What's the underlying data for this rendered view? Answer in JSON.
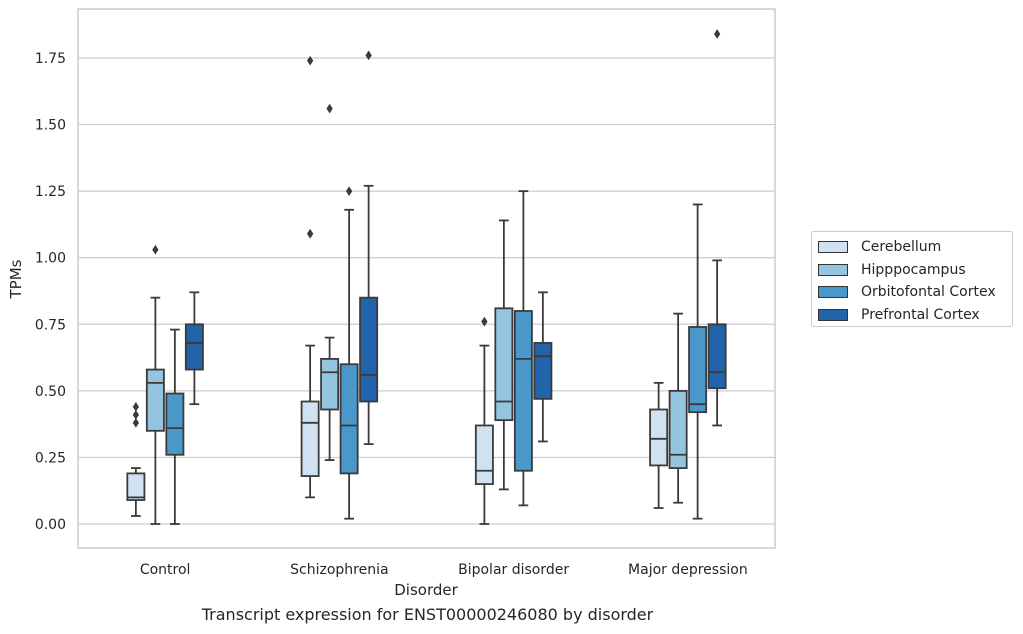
{
  "chart_data": {
    "type": "box",
    "title": "",
    "caption": "Transcript expression for ENST00000246080 by disorder",
    "xlabel": "Disorder",
    "ylabel": "TPMs",
    "categories": [
      "Control",
      "Schizophrenia",
      "Bipolar disorder",
      "Major depression"
    ],
    "ylim": [
      -0.09,
      1.94
    ],
    "yticks": [
      0.0,
      0.25,
      0.5,
      0.75,
      1.0,
      1.25,
      1.5,
      1.75
    ],
    "ytick_labels": [
      "0.00",
      "0.25",
      "0.50",
      "0.75",
      "1.00",
      "1.25",
      "1.50",
      "1.75"
    ],
    "grid": "horizontal",
    "legend_position": "right",
    "series": [
      {
        "name": "Cerebellum",
        "color": "#d0e1f2",
        "boxes": [
          {
            "whisker_low": 0.03,
            "q1": 0.09,
            "median": 0.1,
            "q3": 0.19,
            "whisker_high": 0.21,
            "outliers": [
              0.38,
              0.41,
              0.44
            ]
          },
          {
            "whisker_low": 0.1,
            "q1": 0.18,
            "median": 0.38,
            "q3": 0.46,
            "whisker_high": 0.67,
            "outliers": [
              1.09,
              1.74
            ]
          },
          {
            "whisker_low": 0.0,
            "q1": 0.15,
            "median": 0.2,
            "q3": 0.37,
            "whisker_high": 0.67,
            "outliers": [
              0.76
            ]
          },
          {
            "whisker_low": 0.06,
            "q1": 0.22,
            "median": 0.32,
            "q3": 0.43,
            "whisker_high": 0.53,
            "outliers": []
          }
        ]
      },
      {
        "name": "Hipppocampus",
        "color": "#94c4df",
        "boxes": [
          {
            "whisker_low": 0.0,
            "q1": 0.35,
            "median": 0.53,
            "q3": 0.58,
            "whisker_high": 0.85,
            "outliers": [
              1.03
            ]
          },
          {
            "whisker_low": 0.24,
            "q1": 0.43,
            "median": 0.57,
            "q3": 0.62,
            "whisker_high": 0.7,
            "outliers": [
              1.56
            ]
          },
          {
            "whisker_low": 0.13,
            "q1": 0.39,
            "median": 0.46,
            "q3": 0.81,
            "whisker_high": 1.14,
            "outliers": []
          },
          {
            "whisker_low": 0.08,
            "q1": 0.21,
            "median": 0.26,
            "q3": 0.5,
            "whisker_high": 0.79,
            "outliers": []
          }
        ]
      },
      {
        "name": "Orbitofontal Cortex",
        "color": "#4a98c9",
        "boxes": [
          {
            "whisker_low": 0.0,
            "q1": 0.26,
            "median": 0.36,
            "q3": 0.49,
            "whisker_high": 0.73,
            "outliers": []
          },
          {
            "whisker_low": 0.02,
            "q1": 0.19,
            "median": 0.37,
            "q3": 0.6,
            "whisker_high": 1.18,
            "outliers": [
              1.25
            ]
          },
          {
            "whisker_low": 0.07,
            "q1": 0.2,
            "median": 0.62,
            "q3": 0.8,
            "whisker_high": 1.25,
            "outliers": []
          },
          {
            "whisker_low": 0.02,
            "q1": 0.42,
            "median": 0.45,
            "q3": 0.74,
            "whisker_high": 1.2,
            "outliers": []
          }
        ]
      },
      {
        "name": "Prefrontal Cortex",
        "color": "#2164ab",
        "boxes": [
          {
            "whisker_low": 0.45,
            "q1": 0.58,
            "median": 0.68,
            "q3": 0.75,
            "whisker_high": 0.87,
            "outliers": []
          },
          {
            "whisker_low": 0.3,
            "q1": 0.46,
            "median": 0.56,
            "q3": 0.85,
            "whisker_high": 1.27,
            "outliers": [
              1.76
            ]
          },
          {
            "whisker_low": 0.31,
            "q1": 0.47,
            "median": 0.63,
            "q3": 0.68,
            "whisker_high": 0.87,
            "outliers": []
          },
          {
            "whisker_low": 0.37,
            "q1": 0.51,
            "median": 0.57,
            "q3": 0.75,
            "whisker_high": 0.99,
            "outliers": [
              1.84
            ]
          }
        ]
      }
    ]
  }
}
